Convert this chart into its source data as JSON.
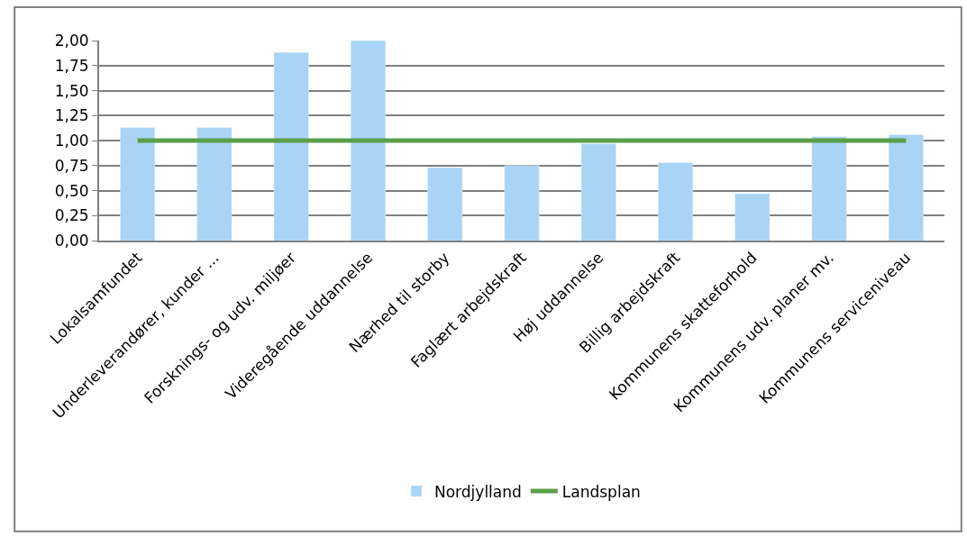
{
  "chart_data": {
    "type": "bar",
    "categories": [
      "Lokalsamfundet",
      "Underleverandører, kunder ...",
      "Forsknings- og udv. miljøer",
      "Videregående uddannelse",
      "Nærhed til storby",
      "Faglært arbejdskraft",
      "Høj uddannelse",
      "Billig arbejdskraft",
      "Kommunens skatteforhold",
      "Kommunens udv. planer mv.",
      "Kommunens serviceniveau"
    ],
    "series": [
      {
        "name": "Nordjylland",
        "color": "#a9d4f5",
        "values": [
          1.13,
          1.13,
          1.88,
          2.0,
          0.73,
          0.75,
          0.97,
          0.78,
          0.47,
          1.04,
          1.06
        ]
      },
      {
        "name": "Landsplan",
        "type": "line",
        "color": "#5a9f4b",
        "values": [
          1.0,
          1.0,
          1.0,
          1.0,
          1.0,
          1.0,
          1.0,
          1.0,
          1.0,
          1.0,
          1.0
        ]
      }
    ],
    "ylim": [
      0,
      2
    ],
    "yticks": [
      {
        "value": 0,
        "label": "0,00"
      },
      {
        "value": 0.25,
        "label": "0,25"
      },
      {
        "value": 0.5,
        "label": "0,50"
      },
      {
        "value": 0.75,
        "label": "0,75"
      },
      {
        "value": 1,
        "label": "1,00"
      },
      {
        "value": 1.25,
        "label": "1,25"
      },
      {
        "value": 1.5,
        "label": "1,50"
      },
      {
        "value": 1.75,
        "label": "1,75"
      },
      {
        "value": 2,
        "label": "2,00"
      }
    ],
    "grid": "y",
    "legend": "bottom",
    "marker": "none",
    "line_style": "solid"
  }
}
